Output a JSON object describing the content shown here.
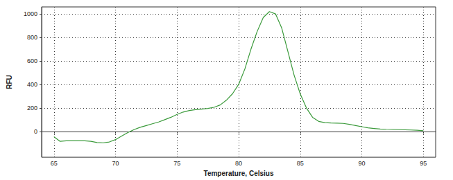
{
  "chart_data": {
    "type": "line",
    "x_label": "Temperature, Celsius",
    "y_label": "RFU",
    "x": [
      65,
      65.5,
      66,
      67,
      67.5,
      68,
      68.5,
      69,
      69.5,
      70,
      70.5,
      71,
      71.5,
      72,
      72.5,
      73,
      73.5,
      74,
      74.5,
      75,
      75.5,
      76,
      76.5,
      77,
      77.5,
      78,
      78.5,
      79,
      79.5,
      80,
      80.5,
      81,
      81.5,
      82,
      82.5,
      83,
      83.5,
      84,
      84.5,
      85,
      85.5,
      86,
      86.5,
      87,
      87.5,
      88,
      88.5,
      89,
      89.5,
      90,
      90.5,
      91,
      91.5,
      92,
      93,
      94,
      94.5,
      95
    ],
    "values": [
      -45,
      -85,
      -80,
      -80,
      -80,
      -85,
      -95,
      -97,
      -90,
      -70,
      -40,
      -10,
      15,
      35,
      50,
      65,
      80,
      100,
      120,
      145,
      165,
      178,
      185,
      190,
      195,
      205,
      225,
      265,
      320,
      400,
      530,
      700,
      850,
      970,
      1020,
      1000,
      880,
      680,
      480,
      320,
      200,
      120,
      85,
      75,
      72,
      70,
      68,
      60,
      50,
      40,
      30,
      25,
      20,
      18,
      15,
      12,
      10,
      5
    ],
    "color": "#3a9a3a",
    "xlim": [
      64,
      96
    ],
    "xticks": [
      65,
      70,
      75,
      80,
      85,
      90,
      95
    ],
    "ylim": [
      -220,
      1060
    ],
    "yticks": [
      0,
      200,
      400,
      600,
      800,
      1000
    ],
    "grid": true
  }
}
